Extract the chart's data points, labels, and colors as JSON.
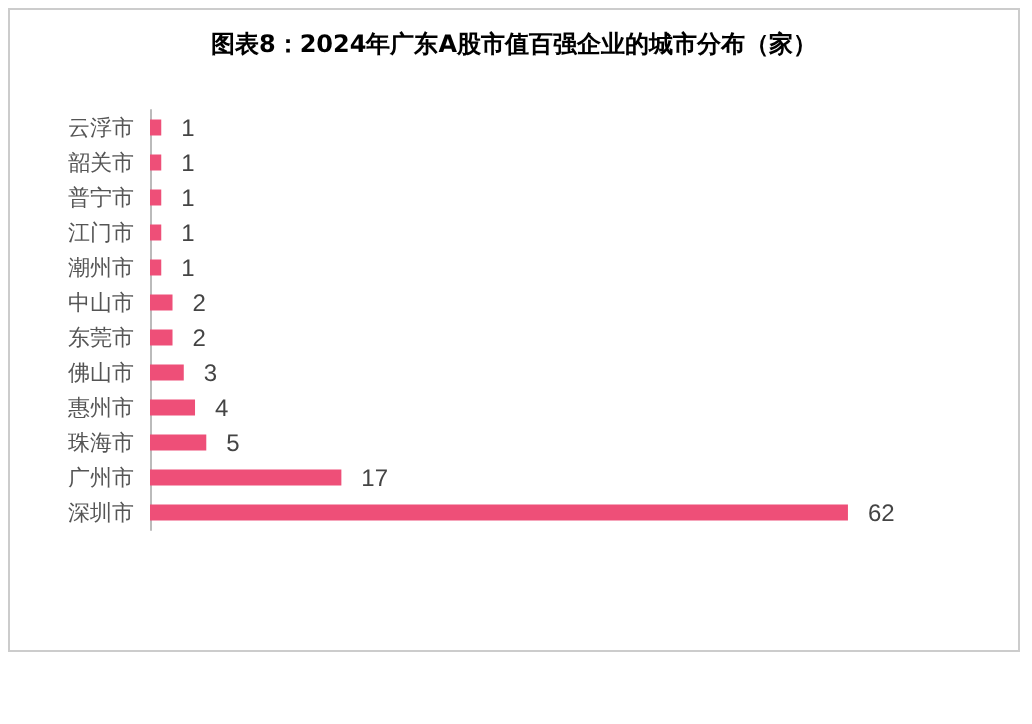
{
  "chart_data": {
    "type": "bar",
    "orientation": "horizontal",
    "title": "图表8：2024年广东A股市值百强企业的城市分布（家）",
    "categories": [
      "云浮市",
      "韶关市",
      "普宁市",
      "江门市",
      "潮州市",
      "中山市",
      "东莞市",
      "佛山市",
      "惠州市",
      "珠海市",
      "广州市",
      "深圳市"
    ],
    "values": [
      1,
      1,
      1,
      1,
      1,
      2,
      2,
      3,
      4,
      5,
      17,
      62
    ],
    "color": "#ee4f78",
    "data_labels": true
  }
}
